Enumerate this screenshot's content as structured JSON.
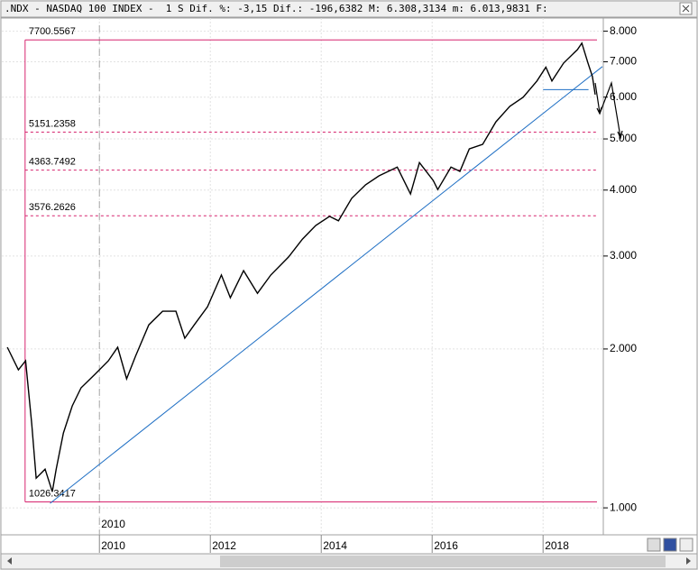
{
  "chart_data": {
    "type": "line",
    "title": ".NDX - NASDAQ 100 INDEX -  1 S Dif. %: -3,15 Dif.: -196,6382 M: 6.308,3134 m: 6.013,9831 F:",
    "x": [
      2008.34,
      2008.54,
      2008.67,
      2008.78,
      2008.86,
      2009.02,
      2009.15,
      2009.22,
      2009.35,
      2009.51,
      2009.67,
      2009.92,
      2010.16,
      2010.33,
      2010.49,
      2010.65,
      2010.89,
      2011.14,
      2011.38,
      2011.54,
      2011.71,
      2011.95,
      2012.2,
      2012.36,
      2012.6,
      2012.85,
      2013.09,
      2013.41,
      2013.66,
      2013.9,
      2014.15,
      2014.31,
      2014.55,
      2014.8,
      2015.04,
      2015.37,
      2015.61,
      2015.77,
      2016.02,
      2016.1,
      2016.34,
      2016.5,
      2016.67,
      2016.91,
      2017.15,
      2017.4,
      2017.64,
      2017.89,
      2018.05,
      2018.16,
      2018.37,
      2018.62,
      2018.7,
      2018.81,
      2018.89,
      2018.94
    ],
    "values": [
      2015,
      1826,
      1900,
      1442,
      1138,
      1184,
      1073,
      1184,
      1386,
      1560,
      1688,
      1791,
      1899,
      2015,
      1756,
      1937,
      2222,
      2358,
      2358,
      2096,
      2222,
      2404,
      2762,
      2501,
      2815,
      2550,
      2762,
      2987,
      3229,
      3428,
      3566,
      3499,
      3858,
      4093,
      4255,
      4422,
      3932,
      4510,
      4171,
      4009,
      4422,
      4340,
      4787,
      4883,
      5387,
      5765,
      5997,
      6437,
      6838,
      6437,
      6963,
      7384,
      7595,
      6963,
      6566,
      6066
    ],
    "color": "#000000",
    "xlim": [
      2008.24,
      2019.07
    ],
    "xticks": [
      2010,
      2012,
      2014,
      2016,
      2018
    ],
    "ylim": [
      889,
      8210
    ],
    "log_scale": true,
    "yticks": [
      {
        "value": 1000,
        "label": "1.000"
      },
      {
        "value": 2000,
        "label": "2.000"
      },
      {
        "value": 3000,
        "label": "3.000"
      },
      {
        "value": 4000,
        "label": "4.000"
      },
      {
        "value": 5000,
        "label": "5.000"
      },
      {
        "value": 6000,
        "label": "6.000"
      },
      {
        "value": 7000,
        "label": "7.000"
      },
      {
        "value": 8000,
        "label": "8.000"
      }
    ],
    "grid": true,
    "cursor_x": 2010,
    "levels": [
      7700.5567,
      5151.2358,
      4363.7492,
      3576.2626,
      1026.3417
    ],
    "levels_x": 2008.66,
    "levels_color": "#d6246e",
    "trendlines": [
      {
        "x": [
          2009.11,
          2019.07
        ],
        "values": [
          1020,
          6856
        ]
      },
      {
        "x": [
          2018.0,
          2018.82
        ],
        "values": [
          6200,
          6200
        ]
      }
    ],
    "trend_color": "#1f6fc4"
  }
}
